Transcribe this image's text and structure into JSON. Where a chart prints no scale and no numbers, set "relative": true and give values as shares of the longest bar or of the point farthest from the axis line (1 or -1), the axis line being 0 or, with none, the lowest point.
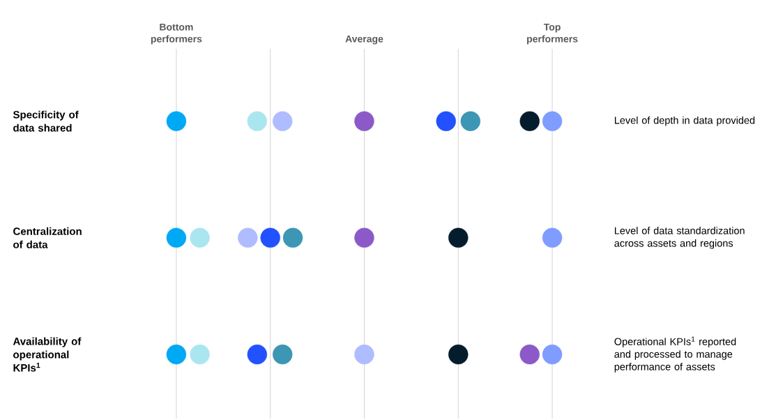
{
  "chart_data": {
    "type": "scatter",
    "orientation": "horizontal",
    "marker": "circle",
    "relative": true,
    "categories": [
      "Specificity of data shared",
      "Centralization of data",
      "Availability of operational KPIs$^{1}$"
    ],
    "ref_lines": [
      {
        "axis": "x",
        "value": 0,
        "label": "Bottom performers",
        "color": "#c8c8c8"
      },
      {
        "axis": "x",
        "value": 0.25,
        "label": null,
        "color": "#c8c8c8"
      },
      {
        "axis": "x",
        "value": 0.5,
        "label": "Average",
        "color": "#c8c8c8"
      },
      {
        "axis": "x",
        "value": 0.75,
        "label": null,
        "color": "#c8c8c8"
      },
      {
        "axis": "x",
        "value": 1,
        "label": "Top performers",
        "color": "#c8c8c8"
      }
    ],
    "series": [
      {
        "color": "#00a9f4",
        "values": [
          0,
          0,
          0
        ]
      },
      {
        "color": "#aae6f0",
        "values": [
          0.215,
          0.0625,
          0.0625
        ]
      },
      {
        "color": "#afbcff",
        "values": [
          0.2825,
          0.19,
          0.5
        ]
      },
      {
        "color": "#8c5ac8",
        "values": [
          0.5,
          0.5,
          0.94
        ]
      },
      {
        "color": "#2251ff",
        "values": [
          0.7175,
          0.25,
          0.215
        ]
      },
      {
        "color": "#3c96b4",
        "values": [
          0.7825,
          0.31,
          0.2825
        ]
      },
      {
        "color": "#051c2c",
        "values": [
          0.94,
          0.75,
          0.75
        ]
      },
      {
        "color": "#7f9cff",
        "values": [
          1,
          1,
          1
        ]
      }
    ],
    "annotations": [
      "Level of depth in data provided",
      "Level of data standardization across assets and regions",
      "Operational KPIs$^{1}$ reported and processed to manage performance of assets"
    ]
  }
}
